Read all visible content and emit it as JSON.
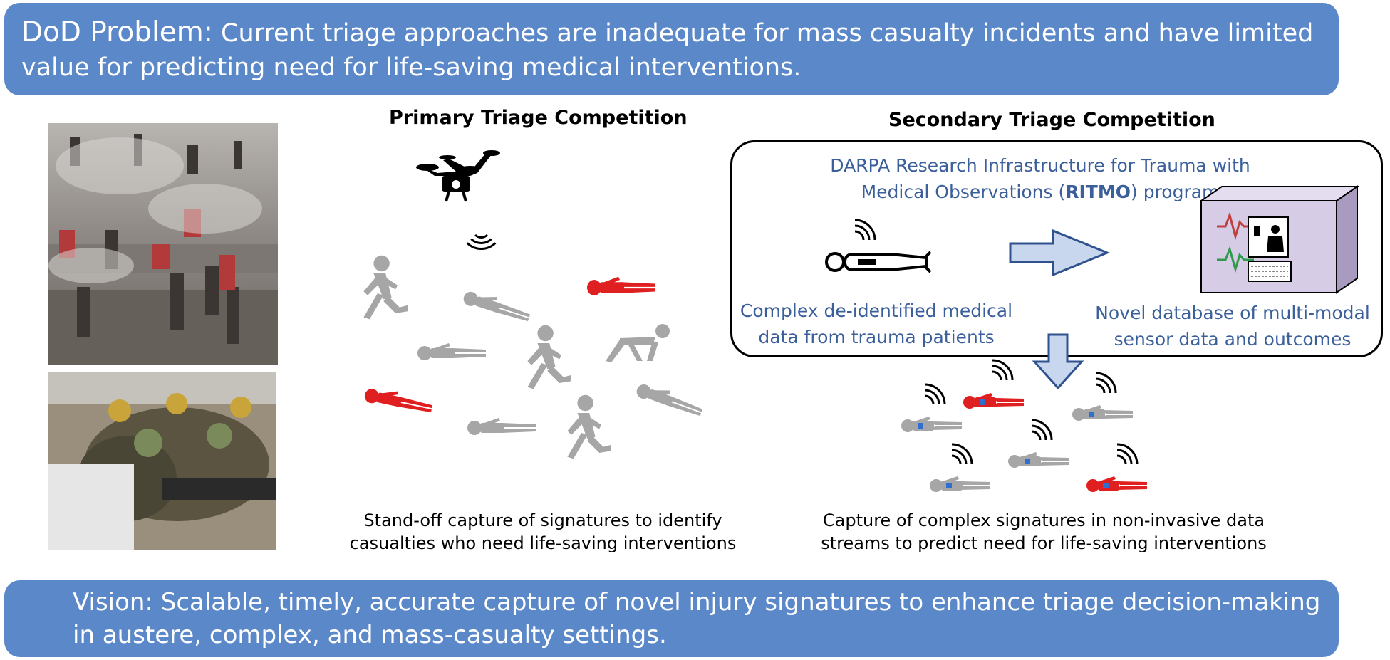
{
  "top_banner": {
    "lead": "DoD Problem:",
    "text": " Current triage approaches are inadequate for mass casualty incidents and have limited value for predicting need for life-saving medical interventions."
  },
  "primary": {
    "heading": "Primary Triage Competition",
    "caption_line1": "Stand-off capture of signatures to identify",
    "caption_line2": "casualties who need life-saving interventions"
  },
  "secondary": {
    "heading": "Secondary Triage Competition",
    "ritmo_line1": "DARPA Research Infrastructure for Trauma with",
    "ritmo_line2_a": "Medical Observations (",
    "ritmo_line2_b": "RITMO",
    "ritmo_line2_c": ") program",
    "source_line1": "Complex de-identified medical",
    "source_line2": "data from trauma patients",
    "db_line1": "Novel database of multi-modal",
    "db_line2": "sensor data and outcomes",
    "caption_line1": "Capture of complex signatures in non-invasive data",
    "caption_line2": "streams to predict need for life-saving interventions"
  },
  "bottom_banner": {
    "lead": "Vision",
    "text": ": Scalable, timely, accurate capture of novel injury signatures to enhance triage decision-making in austere, complex, and mass-casualty settings."
  },
  "colors": {
    "banner": "#5b88c9",
    "casualty_gray": "#a6a6a6",
    "casualty_red": "#e02020",
    "ritmo_text": "#3a5f9b",
    "arrow_fill": "#c9d7ee",
    "arrow_stroke": "#2f528f"
  }
}
